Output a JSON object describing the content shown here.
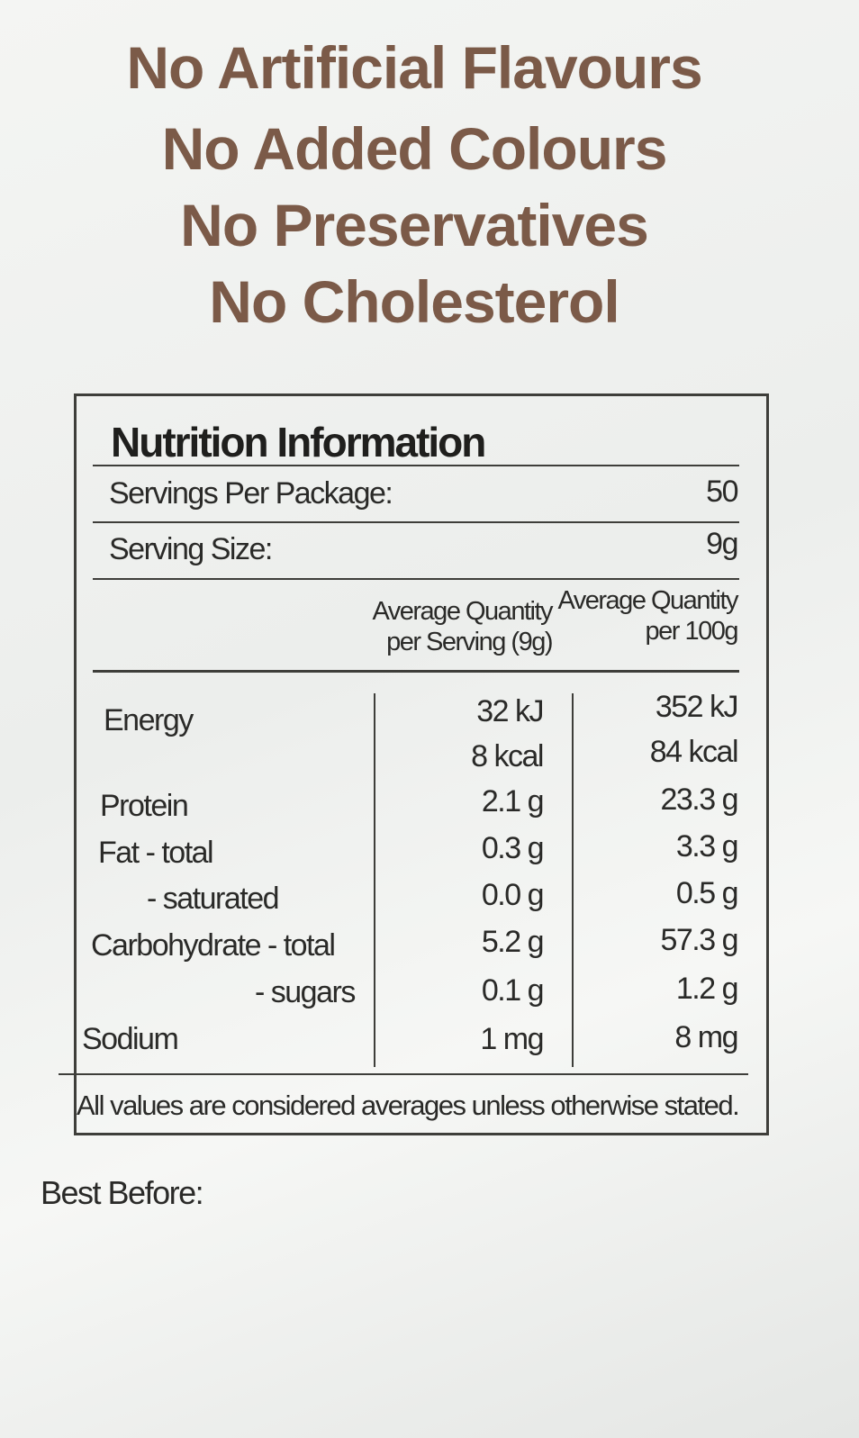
{
  "claims": [
    "No Artificial Flavours",
    "No Added Colours",
    "No Preservatives",
    "No Cholesterol"
  ],
  "nutrition": {
    "title": "Nutrition Information",
    "servings_per_package": {
      "label": "Servings Per Package:",
      "value": "50"
    },
    "serving_size": {
      "label": "Serving Size:",
      "value": "9g"
    },
    "columns": [
      [
        "Average Quantity",
        "per Serving (9g)"
      ],
      [
        "Average Quantity",
        "per 100g"
      ]
    ],
    "rows": [
      {
        "label": "Energy",
        "per_serving": [
          "32 kJ",
          "8 kcal"
        ],
        "per_100g": [
          "352 kJ",
          "84 kcal"
        ]
      },
      {
        "label": "Protein",
        "per_serving": "2.1 g",
        "per_100g": "23.3 g"
      },
      {
        "label": "Fat - total",
        "per_serving": "0.3 g",
        "per_100g": "3.3 g"
      },
      {
        "label": "- saturated",
        "per_serving": "0.0 g",
        "per_100g": "0.5 g"
      },
      {
        "label": "Carbohydrate - total",
        "per_serving": "5.2 g",
        "per_100g": "57.3 g"
      },
      {
        "label": "- sugars",
        "per_serving": "0.1 g",
        "per_100g": "1.2 g"
      },
      {
        "label": "Sodium",
        "per_serving": "1 mg",
        "per_100g": "8 mg"
      }
    ],
    "footnote": "All values are considered averages unless otherwise stated."
  },
  "best_before": "Best Before:"
}
